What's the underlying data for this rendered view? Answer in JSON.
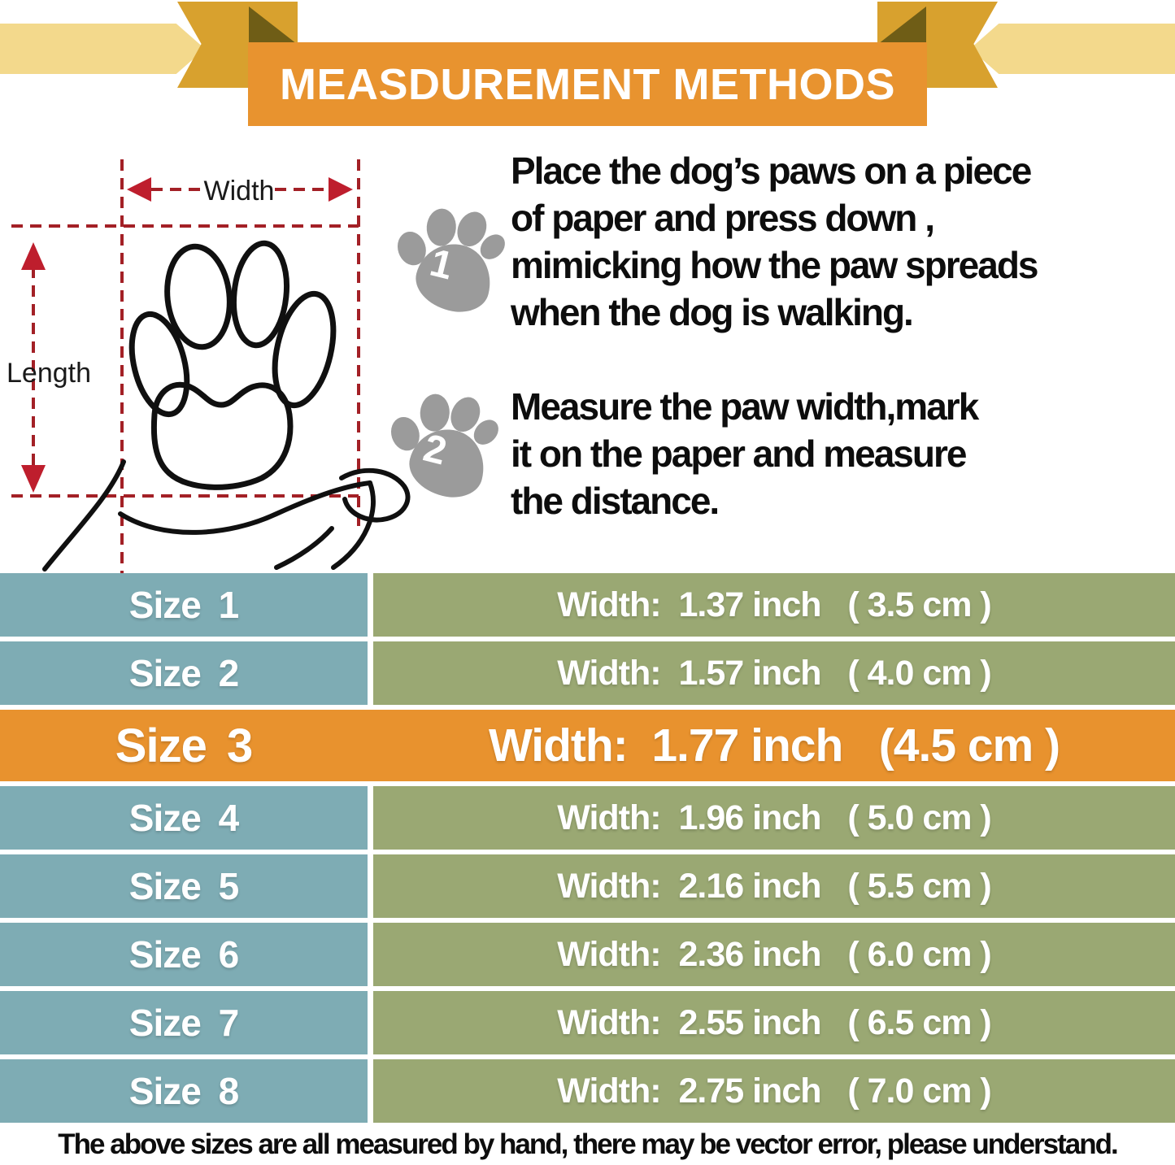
{
  "banner": {
    "title": "MEASDUREMENT METHODS"
  },
  "diagram": {
    "width_label": "Width",
    "length_label": "Length"
  },
  "steps": [
    {
      "number": "1",
      "text": "Place the dog’s paws on a piece\nof paper and press down ,\nmimicking how the paw spreads\nwhen the dog is walking."
    },
    {
      "number": "2",
      "text": "Measure the paw width,mark\nit on the paper and measure\nthe distance."
    }
  ],
  "size_table": {
    "rows": [
      {
        "size": "Size 1",
        "width": "Width:  1.37 inch   ( 3.5 cm )",
        "highlight": false
      },
      {
        "size": "Size 2",
        "width": "Width:  1.57 inch   ( 4.0 cm )",
        "highlight": false
      },
      {
        "size": "Size 3",
        "width": "Width:  1.77 inch   (4.5 cm )",
        "highlight": true
      },
      {
        "size": "Size 4",
        "width": "Width:  1.96 inch   ( 5.0 cm )",
        "highlight": false
      },
      {
        "size": "Size 5",
        "width": "Width:  2.16 inch   ( 5.5 cm )",
        "highlight": false
      },
      {
        "size": "Size 6",
        "width": "Width:  2.36 inch   ( 6.0 cm )",
        "highlight": false
      },
      {
        "size": "Size 7",
        "width": "Width:  2.55 inch   ( 6.5 cm )",
        "highlight": false
      },
      {
        "size": "Size 8",
        "width": "Width:  2.75 inch   ( 7.0 cm )",
        "highlight": false
      }
    ]
  },
  "footer": {
    "note": "The above sizes are all measured by hand, there may be vector error, please understand."
  },
  "colors": {
    "banner_orange": "#e8932f",
    "highlight_orange": "#e8922e",
    "ribbon_gold": "#d8a12e",
    "ribbon_pale_gold": "#f3d98c",
    "ribbon_fold_dark": "#6f5d16",
    "cell_teal": "#7eacb4",
    "cell_olive": "#9aa873",
    "measure_red": "#a32026",
    "paw_gray": "#9b9b9b"
  }
}
